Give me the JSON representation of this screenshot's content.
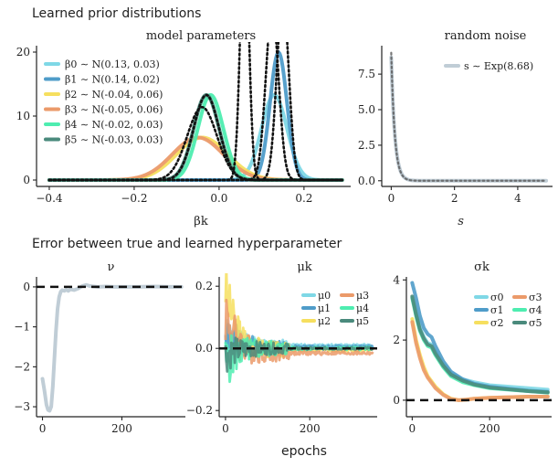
{
  "figure": {
    "row1_title": "Learned prior distributions",
    "row2_title": "Error between true and learned hyperparameter",
    "shared_xlabel": "epochs"
  },
  "chart_data": [
    {
      "id": "model-params",
      "type": "line",
      "title": "model parameters",
      "xlabel": "βk",
      "ylabel": "",
      "xlim": [
        -0.43,
        0.31
      ],
      "ylim": [
        -1,
        21
      ],
      "xticks": [
        -0.4,
        -0.2,
        0.0,
        0.2
      ],
      "xtick_labels": [
        "−0.4",
        "−0.2",
        "0.0",
        "0.2"
      ],
      "yticks": [
        0,
        10,
        20
      ],
      "ytick_labels": [
        "0",
        "10",
        "20"
      ],
      "x_range": [
        -0.4,
        0.29
      ],
      "legend_position": "upper-left",
      "series": [
        {
          "name": "β0 ∼ N(0.13, 0.03)",
          "color": "#7fd8e6",
          "mean": 0.13,
          "sd": 0.03
        },
        {
          "name": "β1 ∼ N(0.14, 0.02)",
          "color": "#4f9cc9",
          "mean": 0.14,
          "sd": 0.02
        },
        {
          "name": "β2 ∼ N(-0.04, 0.06)",
          "color": "#f6df5f",
          "mean": -0.04,
          "sd": 0.06
        },
        {
          "name": "β3 ∼ N(-0.05, 0.06)",
          "color": "#eb9a6a",
          "mean": -0.05,
          "sd": 0.06
        },
        {
          "name": "β4 ∼ N(-0.02, 0.03)",
          "color": "#4eedb0",
          "mean": -0.02,
          "sd": 0.03
        },
        {
          "name": "β5 ∼ N(-0.03, 0.03)",
          "color": "#4a8a7c",
          "mean": -0.03,
          "sd": 0.03
        }
      ],
      "true_priors": [
        {
          "mean": 0.125,
          "sd": 0.015
        },
        {
          "mean": 0.15,
          "sd": 0.014
        },
        {
          "mean": -0.03,
          "sd": 0.03
        },
        {
          "mean": -0.04,
          "sd": 0.035
        },
        {
          "mean": 0.06,
          "sd": 0.01
        }
      ],
      "true_prior_style": "dotted black"
    },
    {
      "id": "random-noise",
      "type": "line",
      "title": "random noise",
      "xlabel": "s",
      "xlim": [
        -0.3,
        5.1
      ],
      "ylim": [
        -0.4,
        9.5
      ],
      "xticks": [
        0,
        2,
        4
      ],
      "xtick_labels": [
        "0",
        "2",
        "4"
      ],
      "yticks": [
        0,
        2.5,
        5,
        7.5
      ],
      "ytick_labels": [
        "0.0",
        "2.5",
        "5.0",
        "7.5"
      ],
      "series": [
        {
          "name": "s ∼ Exp(8.68)",
          "color": "#c0cdd6",
          "rate": 8.68,
          "x_range": [
            0,
            4.9
          ]
        }
      ],
      "true_prior": {
        "rate": 9.0,
        "style": "dotted black"
      }
    },
    {
      "id": "nu-error",
      "type": "line",
      "title": "ν",
      "xlim": [
        -15,
        360
      ],
      "ylim": [
        -3.25,
        0.25
      ],
      "xticks": [
        0,
        200
      ],
      "xtick_labels": [
        "0",
        "200"
      ],
      "yticks": [
        0,
        -1,
        -2,
        -3
      ],
      "ytick_labels": [
        "0",
        "−1",
        "−2",
        "−3"
      ],
      "reference_line": 0,
      "series": [
        {
          "name": "ν",
          "color": "#c0cdd6",
          "x": [
            0,
            5,
            10,
            14,
            18,
            22,
            26,
            30,
            34,
            38,
            42,
            46,
            50,
            55,
            60,
            65,
            70,
            80,
            90,
            100,
            110,
            120,
            140,
            160,
            180,
            200,
            240,
            280,
            320,
            350
          ],
          "y": [
            -2.3,
            -2.6,
            -2.95,
            -3.08,
            -3.1,
            -3.0,
            -2.5,
            -1.8,
            -1.1,
            -0.55,
            -0.25,
            -0.12,
            -0.08,
            -0.1,
            -0.07,
            -0.1,
            -0.06,
            -0.08,
            -0.04,
            0.02,
            0.05,
            0.02,
            0.0,
            0.01,
            0.0,
            0.0,
            0.0,
            0.01,
            0.0,
            0.0
          ]
        }
      ]
    },
    {
      "id": "mu-error",
      "type": "line",
      "title": "μk",
      "xlim": [
        -15,
        360
      ],
      "ylim": [
        -0.22,
        0.23
      ],
      "xticks": [
        0,
        200
      ],
      "xtick_labels": [
        "0",
        "200"
      ],
      "yticks": [
        0.2,
        0.0,
        -0.2
      ],
      "ytick_labels": [
        "0.2",
        "0.0",
        "−0.2"
      ],
      "reference_line": 0,
      "legend_position": "upper-right",
      "series": [
        {
          "name": "μ0",
          "color": "#7fd8e6",
          "start": 0.04,
          "end": 0.01,
          "amp": 0.05,
          "seed": 1
        },
        {
          "name": "μ1",
          "color": "#4f9cc9",
          "start": 0.06,
          "end": 0.005,
          "amp": 0.06,
          "seed": 2
        },
        {
          "name": "μ2",
          "color": "#f6df5f",
          "start": 0.2,
          "end": -0.005,
          "amp": 0.07,
          "seed": 3
        },
        {
          "name": "μ3",
          "color": "#eb9a6a",
          "start": 0.12,
          "end": -0.015,
          "amp": 0.08,
          "seed": 4
        },
        {
          "name": "μ4",
          "color": "#4eedb0",
          "start": -0.05,
          "end": 0.0,
          "amp": 0.07,
          "seed": 5
        },
        {
          "name": "μ5",
          "color": "#4a8a7c",
          "start": -0.02,
          "end": 0.0,
          "amp": 0.05,
          "seed": 6
        }
      ]
    },
    {
      "id": "sigma-error",
      "type": "line",
      "title": "σk",
      "xlim": [
        -15,
        360
      ],
      "ylim": [
        -0.55,
        4.1
      ],
      "xticks": [
        0,
        200
      ],
      "xtick_labels": [
        "0",
        "200"
      ],
      "yticks": [
        4,
        2,
        0
      ],
      "ytick_labels": [
        "4",
        "2",
        "0"
      ],
      "reference_line": 0,
      "legend_position": "upper-right",
      "series": [
        {
          "name": "σ0",
          "color": "#7fd8e6",
          "x": [
            0,
            10,
            20,
            30,
            40,
            50,
            60,
            80,
            100,
            130,
            160,
            200,
            250,
            300,
            350
          ],
          "y": [
            3.4,
            2.9,
            2.4,
            2.1,
            1.9,
            1.85,
            1.6,
            1.2,
            0.9,
            0.7,
            0.6,
            0.5,
            0.45,
            0.4,
            0.35
          ]
        },
        {
          "name": "σ1",
          "color": "#4f9cc9",
          "x": [
            0,
            10,
            20,
            30,
            40,
            50,
            60,
            80,
            100,
            130,
            160,
            200,
            250,
            300,
            350
          ],
          "y": [
            3.9,
            3.4,
            2.8,
            2.4,
            2.2,
            2.1,
            1.8,
            1.3,
            0.95,
            0.7,
            0.55,
            0.45,
            0.38,
            0.32,
            0.28
          ]
        },
        {
          "name": "σ2",
          "color": "#f6df5f",
          "x": [
            0,
            10,
            20,
            30,
            40,
            60,
            80,
            100,
            120,
            140,
            160,
            200,
            250,
            300,
            350
          ],
          "y": [
            2.7,
            2.0,
            1.5,
            1.1,
            0.8,
            0.45,
            0.2,
            0.05,
            0.0,
            0.02,
            0.05,
            0.08,
            0.1,
            0.12,
            0.12
          ]
        },
        {
          "name": "σ3",
          "color": "#eb9a6a",
          "x": [
            0,
            10,
            20,
            30,
            40,
            60,
            80,
            100,
            120,
            140,
            160,
            200,
            250,
            300,
            350
          ],
          "y": [
            2.6,
            1.9,
            1.4,
            1.0,
            0.75,
            0.4,
            0.18,
            0.04,
            0.0,
            0.02,
            0.05,
            0.08,
            0.1,
            0.12,
            0.12
          ]
        },
        {
          "name": "σ4",
          "color": "#4eedb0",
          "x": [
            0,
            10,
            20,
            30,
            40,
            50,
            60,
            80,
            100,
            130,
            160,
            200,
            250,
            300,
            350
          ],
          "y": [
            3.4,
            2.8,
            2.3,
            2.0,
            1.8,
            1.75,
            1.5,
            1.1,
            0.8,
            0.6,
            0.5,
            0.4,
            0.35,
            0.3,
            0.25
          ]
        },
        {
          "name": "σ5",
          "color": "#4a8a7c",
          "x": [
            0,
            10,
            20,
            30,
            40,
            50,
            60,
            80,
            100,
            130,
            160,
            200,
            250,
            300,
            350
          ],
          "y": [
            3.45,
            2.85,
            2.35,
            2.05,
            1.85,
            1.8,
            1.55,
            1.15,
            0.85,
            0.65,
            0.52,
            0.42,
            0.36,
            0.3,
            0.26
          ]
        }
      ]
    }
  ]
}
